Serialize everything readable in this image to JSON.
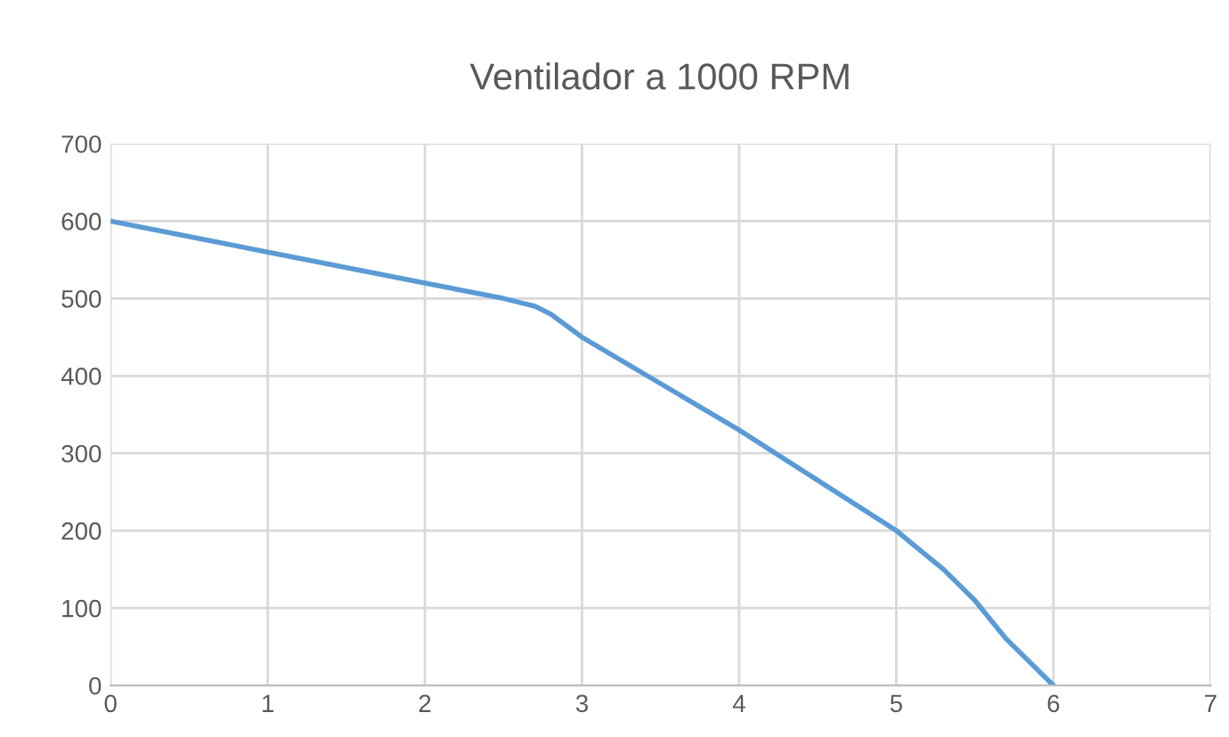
{
  "chart_data": {
    "type": "line",
    "title": "Ventilador a 1000 RPM",
    "x": [
      0,
      1,
      2,
      2.5,
      2.7,
      2.8,
      3,
      4,
      5,
      5.3,
      5.5,
      5.7,
      6
    ],
    "series": [
      {
        "color": "#5b9bd5",
        "values": [
          600,
          560,
          520,
          500,
          490,
          480,
          450,
          330,
          200,
          150,
          110,
          60,
          0
        ]
      }
    ],
    "xlim": [
      0,
      7
    ],
    "xticks": [
      0,
      1,
      2,
      3,
      4,
      5,
      6,
      7
    ],
    "ylim": [
      0,
      700
    ],
    "yticks": [
      0,
      100,
      200,
      300,
      400,
      500,
      600,
      700
    ],
    "grid": true,
    "marker": "none",
    "line_style": "solid"
  }
}
